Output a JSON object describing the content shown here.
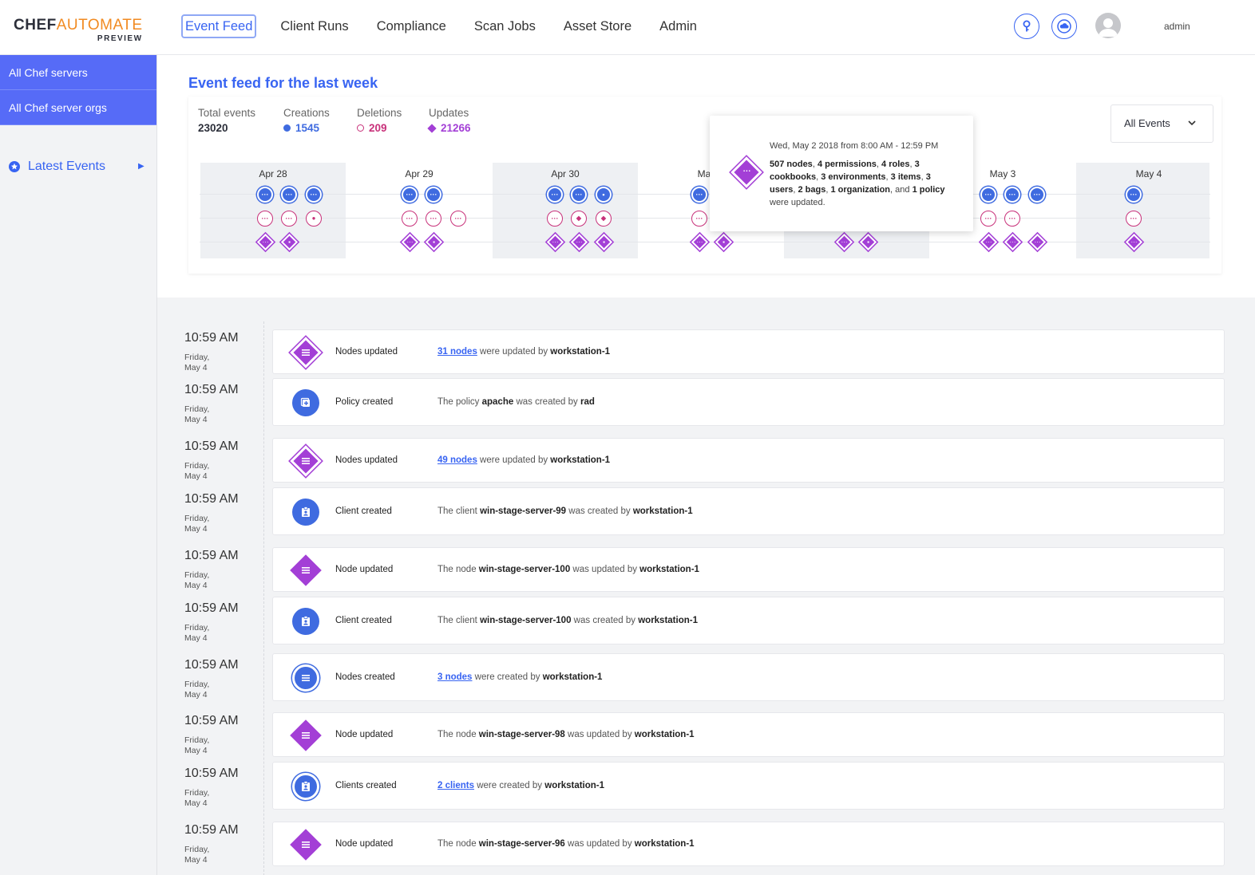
{
  "header": {
    "logo_main": "CHEF",
    "logo_accent": "AUTOMATE",
    "logo_sub": "PREVIEW",
    "nav": [
      "Event Feed",
      "Client Runs",
      "Compliance",
      "Scan Jobs",
      "Asset Store",
      "Admin"
    ],
    "active_nav": "Event Feed",
    "user": "admin",
    "icons": [
      "key-icon",
      "cloud-icon",
      "avatar"
    ]
  },
  "sidebar": {
    "items": [
      "All Chef servers",
      "All Chef server orgs"
    ],
    "latest": "Latest Events"
  },
  "summary": {
    "title": "Event feed for the last week",
    "total_label": "Total events",
    "total_value": "23020",
    "creations_label": "Creations",
    "creations_value": "1545",
    "deletions_label": "Deletions",
    "deletions_value": "209",
    "updates_label": "Updates",
    "updates_value": "21266",
    "filter": "All Events"
  },
  "timeline": {
    "days": [
      "Apr 28",
      "Apr 29",
      "Apr 30",
      "Ma",
      "May 3",
      "May 4"
    ]
  },
  "tooltip": {
    "date": "Wed, May 2 2018 from 8:00 AM - 12:59 PM",
    "b1": "507 nodes",
    "t1": ", ",
    "b2": "4 permissions",
    "t2": ", ",
    "b3": "4 roles",
    "t3": ", ",
    "b4": "3 cookbooks",
    "t4": ", ",
    "b5": "3 environments",
    "t5": ", ",
    "b6": "3 items",
    "t6": ", ",
    "b7": "3 users",
    "t7": ", ",
    "b8": "2 bags",
    "t8": ", ",
    "b9": "1 organization",
    "t9": ", and ",
    "b10": "1 policy",
    "t10": " were updated."
  },
  "feed": [
    {
      "time": "10:59 AM",
      "day": "Friday,",
      "date": "May 4",
      "title": "Nodes updated",
      "pre": "",
      "link": "31 nodes",
      "b1": "",
      "mid": " were updated by ",
      "b2": "workstation-1"
    },
    {
      "time": "10:59 AM",
      "day": "Friday,",
      "date": "May 4",
      "title": "Policy created",
      "pre": "The policy ",
      "link": "",
      "b1": "apache",
      "mid": " was created by ",
      "b2": "rad"
    },
    {
      "time": "10:59 AM",
      "day": "Friday,",
      "date": "May 4",
      "title": "Nodes updated",
      "pre": "",
      "link": "49 nodes",
      "b1": "",
      "mid": " were updated by ",
      "b2": "workstation-1"
    },
    {
      "time": "10:59 AM",
      "day": "Friday,",
      "date": "May 4",
      "title": "Client created",
      "pre": "The client ",
      "link": "",
      "b1": "win-stage-server-99",
      "mid": " was created by ",
      "b2": "workstation-1"
    },
    {
      "time": "10:59 AM",
      "day": "Friday,",
      "date": "May 4",
      "title": "Node updated",
      "pre": "The node ",
      "link": "",
      "b1": "win-stage-server-100",
      "mid": " was updated by ",
      "b2": "workstation-1"
    },
    {
      "time": "10:59 AM",
      "day": "Friday,",
      "date": "May 4",
      "title": "Client created",
      "pre": "The client ",
      "link": "",
      "b1": "win-stage-server-100",
      "mid": " was created by ",
      "b2": "workstation-1"
    },
    {
      "time": "10:59 AM",
      "day": "Friday,",
      "date": "May 4",
      "title": "Nodes created",
      "pre": "",
      "link": "3 nodes",
      "b1": "",
      "mid": " were created by ",
      "b2": "workstation-1"
    },
    {
      "time": "10:59 AM",
      "day": "Friday,",
      "date": "May 4",
      "title": "Node updated",
      "pre": "The node ",
      "link": "",
      "b1": "win-stage-server-98",
      "mid": " was updated by ",
      "b2": "workstation-1"
    },
    {
      "time": "10:59 AM",
      "day": "Friday,",
      "date": "May 4",
      "title": "Clients created",
      "pre": "",
      "link": "2 clients",
      "b1": "",
      "mid": " were created by ",
      "b2": "workstation-1"
    },
    {
      "time": "10:59 AM",
      "day": "Friday,",
      "date": "May 4",
      "title": "Node updated",
      "pre": "The node ",
      "link": "",
      "b1": "win-stage-server-96",
      "mid": " was updated by ",
      "b2": "workstation-1"
    }
  ],
  "colors": {
    "accent": "#3864f2",
    "create": "#3f6be0",
    "delete": "#c8317a",
    "update": "#a33fd6",
    "sidebar_btn": "#566bf7",
    "logo_accent": "#f18a21"
  }
}
